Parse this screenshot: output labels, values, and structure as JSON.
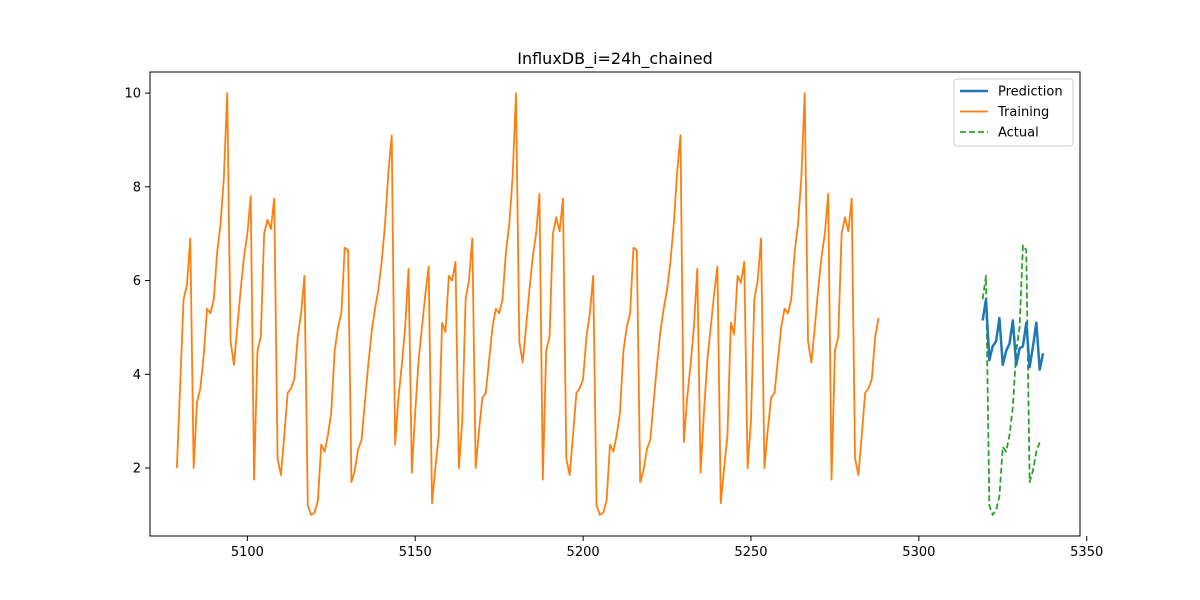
{
  "chart_data": {
    "type": "line",
    "title": "InfluxDB_i=24h_chained",
    "xlabel": "",
    "ylabel": "",
    "xlim": [
      5071,
      5348
    ],
    "ylim": [
      0.55,
      10.45
    ],
    "xticks": [
      5100,
      5150,
      5200,
      5250,
      5300,
      5350
    ],
    "yticks": [
      2,
      4,
      6,
      8,
      10
    ],
    "grid": false,
    "legend_position": "top-right",
    "legend": [
      "Prediction",
      "Training",
      "Actual"
    ],
    "series": [
      {
        "name": "Training",
        "color": "#ff7f0e",
        "style": "solid",
        "x_start": 5079,
        "values": [
          2.0,
          3.8,
          5.6,
          5.9,
          6.9,
          2.0,
          3.4,
          3.7,
          4.4,
          5.4,
          5.3,
          5.6,
          6.6,
          7.2,
          8.2,
          10.0,
          4.7,
          4.2,
          5.0,
          5.8,
          6.5,
          7.0,
          7.8,
          1.75,
          4.5,
          4.8,
          7.0,
          7.3,
          7.1,
          7.75,
          2.2,
          1.85,
          2.7,
          3.6,
          3.7,
          3.9,
          4.8,
          5.3,
          6.1,
          1.2,
          1.0,
          1.05,
          1.3,
          2.5,
          2.35,
          2.7,
          3.2,
          4.5,
          5.0,
          5.3,
          6.7,
          6.65,
          1.7,
          1.95,
          2.4,
          2.6,
          3.4,
          4.2,
          4.9,
          5.4,
          5.8,
          6.4,
          7.2,
          8.3,
          9.1,
          2.5,
          3.5,
          4.2,
          5.0,
          6.25,
          1.9,
          3.2,
          4.3,
          5.0,
          5.7,
          6.3,
          1.25,
          2.0,
          2.7,
          5.1,
          4.9,
          6.1,
          6.0,
          6.4,
          2.0,
          3.0,
          5.6,
          6.0,
          6.9,
          2.0,
          2.8,
          3.5,
          3.6,
          4.3,
          5.0,
          5.4,
          5.3,
          5.6,
          6.6,
          7.2,
          8.2,
          10.0,
          4.7,
          4.25,
          5.0,
          5.8,
          6.5,
          7.0,
          7.85,
          1.75,
          4.5,
          4.8,
          7.0,
          7.35,
          7.05,
          7.75,
          2.2,
          1.85,
          2.7,
          3.6,
          3.7,
          3.9,
          4.8,
          5.3,
          6.1,
          1.2,
          1.0,
          1.05,
          1.3,
          2.5,
          2.35,
          2.7,
          3.2,
          4.5,
          5.0,
          5.3,
          6.7,
          6.65,
          1.7,
          1.95,
          2.4,
          2.6,
          3.4,
          4.2,
          4.9,
          5.4,
          5.8,
          6.4,
          7.2,
          8.3,
          9.1,
          2.55,
          3.5,
          4.2,
          5.0,
          6.25,
          1.9,
          3.2,
          4.3,
          5.0,
          5.7,
          6.3,
          1.25,
          2.0,
          2.7,
          5.1,
          4.85,
          6.1,
          5.95,
          6.4,
          2.0,
          3.0,
          5.6,
          6.0,
          6.9,
          2.0,
          2.8,
          3.5,
          3.6,
          4.3,
          5.0,
          5.4,
          5.3,
          5.6,
          6.6,
          7.2,
          8.2,
          10.0,
          4.7,
          4.25,
          5.0,
          5.8,
          6.5,
          7.0,
          7.85,
          1.75,
          4.5,
          4.8,
          7.0,
          7.35,
          7.05,
          7.75,
          2.2,
          1.85,
          2.7,
          3.6,
          3.7,
          3.9,
          4.8,
          5.2
        ]
      },
      {
        "name": "Actual",
        "color": "#2ca02c",
        "style": "dashed",
        "x_start": 5319,
        "values": [
          5.6,
          6.1,
          1.2,
          1.0,
          1.1,
          1.4,
          2.45,
          2.35,
          2.7,
          3.3,
          4.5,
          5.0,
          6.75,
          6.65,
          1.7,
          1.95,
          2.35,
          2.55
        ]
      },
      {
        "name": "Prediction",
        "color": "#1f77b4",
        "style": "solid",
        "x_start": 5319,
        "values": [
          5.15,
          5.6,
          4.3,
          4.6,
          4.7,
          5.2,
          4.2,
          4.5,
          4.65,
          5.15,
          4.2,
          4.55,
          4.6,
          5.1,
          4.15,
          4.6,
          5.1,
          4.1,
          4.45
        ]
      }
    ]
  }
}
